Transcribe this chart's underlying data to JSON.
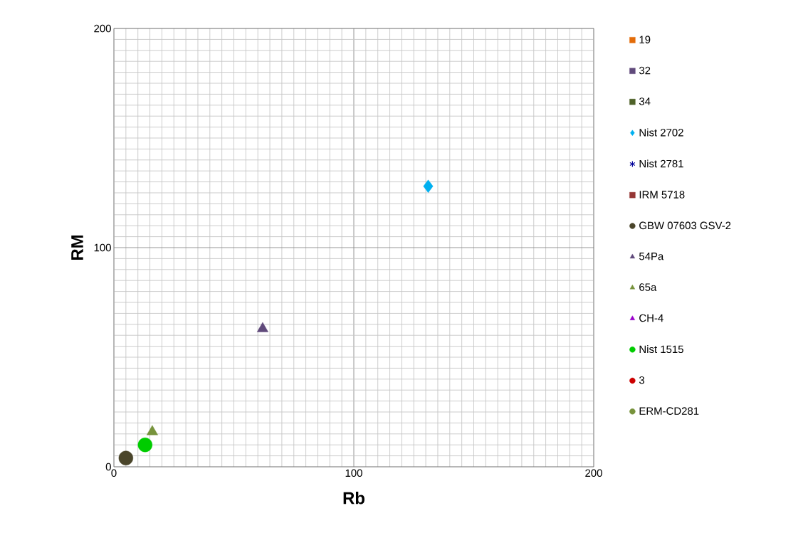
{
  "chart_data": {
    "type": "scatter",
    "xlabel": "Rb",
    "ylabel": "RM",
    "xlim": [
      0,
      200
    ],
    "ylim": [
      0,
      200
    ],
    "xticks": [
      0,
      100,
      200
    ],
    "yticks": [
      0,
      100,
      200
    ],
    "grid": true,
    "legend": "right",
    "series": [
      {
        "name": "19",
        "color": "#e36c09",
        "marker": "square"
      },
      {
        "name": "32",
        "color": "#604a7b",
        "marker": "square"
      },
      {
        "name": "34",
        "color": "#4f6228",
        "marker": "square"
      },
      {
        "name": "Nist 2702",
        "color": "#00b0f0",
        "marker": "diamond",
        "x": [
          131
        ],
        "values": [
          128
        ]
      },
      {
        "name": "Nist 2781",
        "color": "#000099",
        "marker": "star"
      },
      {
        "name": "IRM 5718",
        "color": "#953735",
        "marker": "square"
      },
      {
        "name": "GBW 07603 GSV-2",
        "color": "#4a452a",
        "marker": "circle",
        "x": [
          5
        ],
        "values": [
          4
        ]
      },
      {
        "name": "54Pa",
        "color": "#604a7b",
        "marker": "triangle",
        "x": [
          62
        ],
        "values": [
          63
        ]
      },
      {
        "name": "65a",
        "color": "#77933c",
        "marker": "triangle",
        "x": [
          16
        ],
        "values": [
          16
        ]
      },
      {
        "name": "CH-4",
        "color": "#9900cc",
        "marker": "triangle"
      },
      {
        "name": "Nist 1515",
        "color": "#00cc00",
        "marker": "circle",
        "x": [
          13
        ],
        "values": [
          10
        ]
      },
      {
        "name": "3",
        "color": "#cc0000",
        "marker": "circle"
      },
      {
        "name": "ERM-CD281",
        "color": "#77933c",
        "marker": "circle"
      }
    ]
  }
}
